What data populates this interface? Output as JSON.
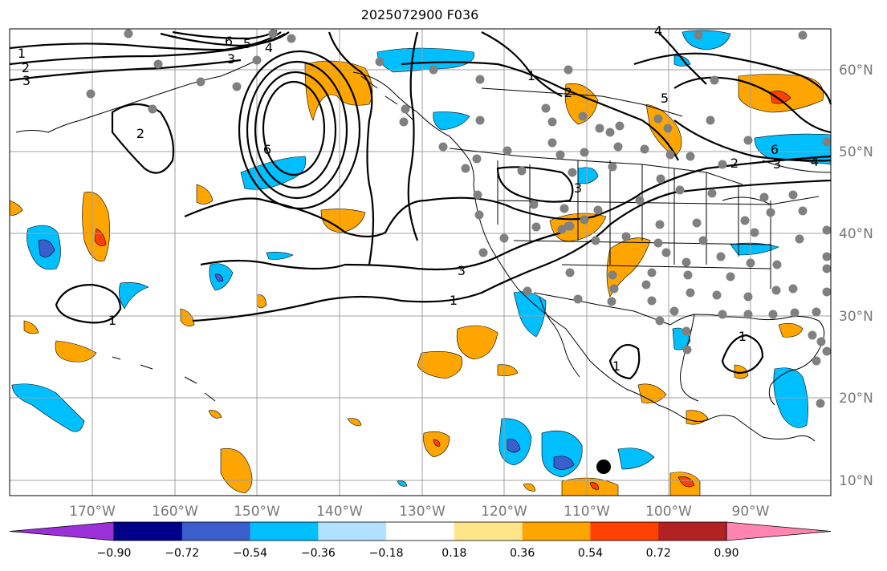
{
  "title": "2025072900 F036",
  "map": {
    "lon_labels": [
      "170°W",
      "160°W",
      "150°W",
      "140°W",
      "130°W",
      "120°W",
      "110°W",
      "100°W",
      "90°W"
    ],
    "lat_labels": [
      "60°N",
      "50°N",
      "40°N",
      "30°N",
      "20°N",
      "10°N"
    ],
    "contour_labels": [
      "1",
      "2",
      "3",
      "4",
      "5",
      "6"
    ],
    "colorbar": {
      "ticks": [
        "−0.90",
        "−0.72",
        "−0.54",
        "−0.36",
        "−0.18",
        "0.18",
        "0.36",
        "0.54",
        "0.72",
        "0.90"
      ],
      "colors": [
        "#9b30d9",
        "#00008b",
        "#3a5fcd",
        "#00bfff",
        "#b0e2ff",
        "#ffffff",
        "#ffe58a",
        "#ffa500",
        "#ff4000",
        "#b22222",
        "#ff85b0"
      ]
    },
    "colors": {
      "positive": "#ffa500",
      "positive_strong": "#ff4000",
      "negative": "#00bfff",
      "negative_strong": "#3a5fcd",
      "station": "#808080"
    }
  }
}
